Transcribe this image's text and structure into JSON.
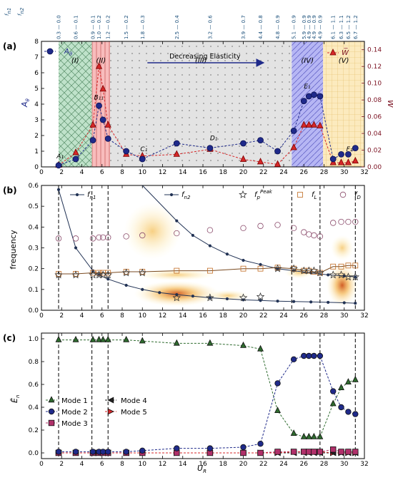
{
  "colors": {
    "blue": "#1f2a8a",
    "red": "#d62728",
    "green_accent": "#2e7d32",
    "maroon": "#7a1020",
    "region_I": "#a9d8b8",
    "region_II": "#f6a5a5",
    "region_III": "#d9d9d9",
    "region_IV": "#9e9ef0",
    "region_V": "#fbe3a8",
    "fD": "#8a4a6a",
    "fL": "#c06a20",
    "mode1": "#2e6b2e",
    "mode2": "#1f2a8a",
    "mode3": "#b0306a",
    "mode4": "#222222",
    "mode5": "#d62728"
  },
  "top_axis": {
    "row1_label": "f",
    "row1_sub": "n1",
    "row2_label": "f",
    "row2_sub": "n2",
    "ticks": [
      {
        "x": 1.7,
        "label": "0.3 — 0.0"
      },
      {
        "x": 3.4,
        "label": "0.6 — 0.1"
      },
      {
        "x": 5.1,
        "label": "0.9 — 0.1"
      },
      {
        "x": 5.7,
        "label": "1.0 — 0.2"
      },
      {
        "x": 6.6,
        "label": "1.2 — 0.2"
      },
      {
        "x": 8.4,
        "label": "1.5 — 0.2"
      },
      {
        "x": 10.0,
        "label": "1.8 — 0.3"
      },
      {
        "x": 13.4,
        "label": "2.5 — 0.4"
      },
      {
        "x": 16.7,
        "label": "3.2 — 0.6"
      },
      {
        "x": 20.0,
        "label": "3.9 — 0.7"
      },
      {
        "x": 21.7,
        "label": "4.4 — 0.8"
      },
      {
        "x": 23.4,
        "label": "4.8 — 0.9"
      },
      {
        "x": 25.0,
        "label": "5.1 — 0.9"
      },
      {
        "x": 26.0,
        "label": "5.9 — 0.9"
      },
      {
        "x": 26.5,
        "label": "4.9 — 0.9"
      },
      {
        "x": 27.0,
        "label": "4.9 — 0.9"
      },
      {
        "x": 27.6,
        "label": "4.9 — 0.9"
      },
      {
        "x": 28.9,
        "label": "6.1 — 1.1"
      },
      {
        "x": 29.7,
        "label": "6.3 — 1.1"
      },
      {
        "x": 30.4,
        "label": "6.5 — 1.2"
      },
      {
        "x": 31.1,
        "label": "6.7 — 1.2"
      }
    ]
  },
  "chart_data": [
    {
      "panel": "(a)",
      "type": "line",
      "xlabel": "",
      "ylabel": "A_θ",
      "ylabel_main": "A",
      "ylabel_sub": "θ",
      "y2label": "W̅",
      "xlim": [
        0,
        32
      ],
      "ylim": [
        0,
        8
      ],
      "y2lim": [
        0,
        0.15
      ],
      "xticks": [
        0,
        2,
        4,
        6,
        8,
        10,
        12,
        14,
        16,
        18,
        20,
        22,
        24,
        26,
        28,
        30,
        32
      ],
      "yticks": [
        0,
        1,
        2,
        3,
        4,
        5,
        6,
        7,
        8
      ],
      "y2ticks": [
        "0.00",
        "0.02",
        "0.04",
        "0.06",
        "0.08",
        "0.10",
        "0.12",
        "0.14"
      ],
      "regions": [
        {
          "label": "(I)",
          "x0": 1.7,
          "x1": 5.0
        },
        {
          "label": "(II)",
          "x0": 5.0,
          "x1": 6.8
        },
        {
          "label": "(III)",
          "x0": 6.8,
          "x1": 24.8
        },
        {
          "label": "(IV)",
          "x0": 24.8,
          "x1": 27.9
        },
        {
          "label": "(V)",
          "x0": 27.9,
          "x1": 32
        }
      ],
      "arrow_text": "Decreasing Elasticity",
      "point_labels": [
        "A₁",
        "B₁₁",
        "C₁",
        "D₁",
        "E₁",
        "F₁"
      ],
      "legend": [
        {
          "symbol": "circle",
          "label": "A_θ"
        },
        {
          "symbol": "triangle",
          "label": "W̅"
        }
      ],
      "series": [
        {
          "name": "A_θ",
          "axis": "left",
          "x": [
            1.7,
            3.4,
            5.1,
            5.7,
            6.1,
            6.6,
            8.4,
            10.0,
            13.4,
            16.7,
            20.0,
            21.7,
            23.4,
            25.0,
            26.0,
            26.5,
            27.0,
            27.6,
            28.9,
            29.7,
            30.4,
            31.1
          ],
          "values": [
            0.1,
            0.5,
            1.7,
            3.9,
            3.0,
            1.8,
            1.0,
            0.5,
            1.5,
            1.2,
            1.5,
            1.7,
            1.0,
            2.3,
            4.2,
            4.5,
            4.6,
            4.5,
            0.5,
            0.8,
            0.8,
            1.2
          ]
        },
        {
          "name": "W̅",
          "axis": "right",
          "x": [
            1.7,
            3.4,
            5.1,
            5.7,
            6.1,
            6.6,
            8.4,
            10.0,
            13.4,
            16.7,
            20.0,
            21.7,
            23.4,
            25.0,
            26.0,
            26.5,
            27.0,
            27.6,
            28.9,
            29.7,
            30.4,
            31.1
          ],
          "values": [
            0.002,
            0.017,
            0.05,
            0.12,
            0.093,
            0.05,
            0.015,
            0.013,
            0.015,
            0.021,
            0.009,
            0.006,
            0.003,
            0.023,
            0.05,
            0.05,
            0.05,
            0.049,
            0.005,
            0.005,
            0.005,
            0.007
          ]
        }
      ]
    },
    {
      "panel": "(b)",
      "type": "line",
      "xlabel": "",
      "ylabel": "frequency",
      "xlim": [
        0,
        32
      ],
      "ylim": [
        0,
        0.6
      ],
      "xticks": [
        0,
        2,
        4,
        6,
        8,
        10,
        12,
        14,
        16,
        18,
        20,
        22,
        24,
        26,
        28,
        30,
        32
      ],
      "yticks": [
        "0.0",
        "0.1",
        "0.2",
        "0.3",
        "0.4",
        "0.5",
        "0.6"
      ],
      "vlines": [
        1.7,
        5.0,
        6.6,
        24.8,
        27.6,
        31.1
      ],
      "legend": [
        {
          "symbol": "line-dot",
          "label": "f_n1",
          "main": "f",
          "sub": "n1"
        },
        {
          "symbol": "line-dot",
          "label": "f_n2",
          "main": "f",
          "sub": "n2"
        },
        {
          "symbol": "star",
          "label": "f_p^Peak",
          "main": "f",
          "sub": "p",
          "sup": "Peak"
        },
        {
          "symbol": "square",
          "label": "f_L",
          "main": "f",
          "sub": "L"
        },
        {
          "symbol": "circle",
          "label": "f_D",
          "main": "f",
          "sub": "D"
        }
      ],
      "series": [
        {
          "name": "f_n1",
          "x": [
            1.7,
            3.4,
            5.1,
            5.7,
            6.6,
            8.4,
            10.0,
            11.7,
            13.4,
            15.0,
            16.7,
            18.4,
            20.0,
            21.7,
            23.4,
            25.0,
            26.7,
            28.4,
            30.0,
            31.1
          ],
          "values": [
            0.58,
            0.3,
            0.19,
            0.17,
            0.15,
            0.12,
            0.1,
            0.085,
            0.075,
            0.068,
            0.06,
            0.055,
            0.05,
            0.047,
            0.044,
            0.042,
            0.04,
            0.038,
            0.036,
            0.034
          ]
        },
        {
          "name": "f_n2",
          "x": [
            13.4,
            15.0,
            16.7,
            18.4,
            20.0,
            21.7,
            23.4,
            25.0,
            26.7,
            28.4,
            30.0,
            31.1
          ],
          "values": [
            0.43,
            0.36,
            0.31,
            0.27,
            0.24,
            0.22,
            0.2,
            0.19,
            0.18,
            0.17,
            0.165,
            0.16
          ]
        },
        {
          "name": "f_p^Peak",
          "x": [
            1.7,
            3.4,
            5.1,
            5.7,
            6.1,
            6.6,
            8.4,
            10.0,
            13.4,
            16.7,
            20.0,
            21.7,
            23.4,
            25.0,
            26.0,
            26.5,
            27.0,
            27.6,
            28.9,
            29.7,
            30.4,
            31.1
          ],
          "values": [
            0.17,
            0.17,
            0.17,
            0.17,
            0.17,
            0.17,
            0.18,
            0.18,
            0.06,
            0.06,
            0.06,
            0.065,
            0.2,
            0.2,
            0.19,
            0.19,
            0.19,
            0.18,
            0.17,
            0.17,
            0.16,
            0.16
          ]
        },
        {
          "name": "f_L",
          "x": [
            1.7,
            3.4,
            5.1,
            5.7,
            6.1,
            6.6,
            8.4,
            10.0,
            13.4,
            16.7,
            20.0,
            21.7,
            23.4,
            25.0,
            26.0,
            26.5,
            27.0,
            27.6,
            28.9,
            29.7,
            30.4,
            31.1
          ],
          "values": [
            0.175,
            0.175,
            0.18,
            0.18,
            0.18,
            0.18,
            0.185,
            0.185,
            0.19,
            0.19,
            0.2,
            0.2,
            0.205,
            0.2,
            0.19,
            0.19,
            0.185,
            0.18,
            0.21,
            0.21,
            0.215,
            0.215
          ]
        },
        {
          "name": "f_D",
          "x": [
            1.7,
            3.4,
            5.1,
            5.7,
            6.1,
            6.6,
            8.4,
            10.0,
            13.4,
            16.7,
            20.0,
            21.7,
            23.4,
            25.0,
            26.0,
            26.5,
            27.0,
            27.6,
            28.9,
            29.7,
            30.4,
            31.1
          ],
          "values": [
            0.345,
            0.345,
            0.345,
            0.35,
            0.35,
            0.35,
            0.355,
            0.36,
            0.37,
            0.385,
            0.395,
            0.405,
            0.41,
            0.395,
            0.375,
            0.365,
            0.36,
            0.355,
            0.42,
            0.425,
            0.425,
            0.425
          ]
        }
      ]
    },
    {
      "panel": "(c)",
      "type": "line",
      "xlabel": "U_R",
      "xlabel_main": "U",
      "xlabel_sub": "R",
      "ylabel": "Ē_n",
      "ylabel_main": "Ē",
      "ylabel_sub": "n",
      "xlim": [
        0,
        32
      ],
      "ylim": [
        -0.05,
        1.05
      ],
      "xticks": [
        0,
        2,
        4,
        6,
        8,
        10,
        12,
        14,
        16,
        18,
        20,
        22,
        24,
        26,
        28,
        30,
        32
      ],
      "yticks": [
        "0.0",
        "0.2",
        "0.4",
        "0.6",
        "0.8",
        "1.0"
      ],
      "vlines": [
        1.7,
        5.0,
        6.6,
        27.6,
        31.1
      ],
      "series": [
        {
          "name": "Mode 1",
          "symbol": "triangle-up",
          "x": [
            1.7,
            3.4,
            5.1,
            5.7,
            6.1,
            6.6,
            8.4,
            10.0,
            13.4,
            16.7,
            20.0,
            21.7,
            23.4,
            25.0,
            26.0,
            26.5,
            27.0,
            27.6,
            28.9,
            29.7,
            30.4,
            31.1
          ],
          "values": [
            0.99,
            0.99,
            0.99,
            0.99,
            0.99,
            0.99,
            0.99,
            0.98,
            0.96,
            0.96,
            0.94,
            0.91,
            0.37,
            0.17,
            0.14,
            0.14,
            0.14,
            0.14,
            0.43,
            0.57,
            0.62,
            0.64
          ]
        },
        {
          "name": "Mode 2",
          "symbol": "circle",
          "x": [
            1.7,
            3.4,
            5.1,
            5.7,
            6.1,
            6.6,
            8.4,
            10.0,
            13.4,
            16.7,
            20.0,
            21.7,
            23.4,
            25.0,
            26.0,
            26.5,
            27.0,
            27.6,
            28.9,
            29.7,
            30.4,
            31.1
          ],
          "values": [
            0.01,
            0.01,
            0.01,
            0.01,
            0.01,
            0.01,
            0.01,
            0.02,
            0.04,
            0.04,
            0.05,
            0.08,
            0.61,
            0.82,
            0.85,
            0.85,
            0.85,
            0.85,
            0.54,
            0.4,
            0.36,
            0.34
          ]
        },
        {
          "name": "Mode 3",
          "symbol": "square",
          "x": [
            1.7,
            3.4,
            5.1,
            5.7,
            6.1,
            6.6,
            8.4,
            10.0,
            13.4,
            16.7,
            20.0,
            21.7,
            23.4,
            25.0,
            26.0,
            26.5,
            27.0,
            27.6,
            28.9,
            29.7,
            30.4,
            31.1
          ],
          "values": [
            0.0,
            0.0,
            0.0,
            0.0,
            0.0,
            0.0,
            0.0,
            0.0,
            0.0,
            0.0,
            0.0,
            0.0,
            0.01,
            0.01,
            0.01,
            0.01,
            0.01,
            0.01,
            0.03,
            0.01,
            0.01,
            0.01
          ]
        },
        {
          "name": "Mode 4",
          "symbol": "triangle-left",
          "x": [
            1.7,
            3.4,
            5.1,
            5.7,
            6.1,
            6.6,
            8.4,
            10.0,
            13.4,
            16.7,
            20.0,
            21.7,
            23.4,
            25.0,
            26.0,
            26.5,
            27.0,
            27.6,
            28.9,
            29.7,
            30.4,
            31.1
          ],
          "values": [
            0.0,
            0.0,
            0.0,
            0.0,
            0.0,
            0.0,
            0.0,
            0.0,
            0.0,
            0.0,
            0.0,
            0.0,
            0.0,
            0.0,
            0.0,
            0.0,
            0.0,
            0.0,
            0.0,
            0.0,
            0.0,
            0.0
          ]
        },
        {
          "name": "Mode 5",
          "symbol": "triangle-right",
          "x": [
            1.7,
            3.4,
            5.1,
            5.7,
            6.1,
            6.6,
            8.4,
            10.0,
            13.4,
            16.7,
            20.0,
            21.7,
            23.4,
            25.0,
            26.0,
            26.5,
            27.0,
            27.6,
            28.9,
            29.7,
            30.4,
            31.1
          ],
          "values": [
            0.0,
            0.0,
            0.0,
            0.0,
            0.0,
            0.0,
            0.0,
            0.0,
            0.0,
            0.0,
            0.0,
            0.0,
            0.0,
            0.01,
            0.01,
            0.01,
            0.01,
            0.01,
            0.0,
            0.0,
            0.0,
            0.0
          ]
        }
      ]
    }
  ]
}
